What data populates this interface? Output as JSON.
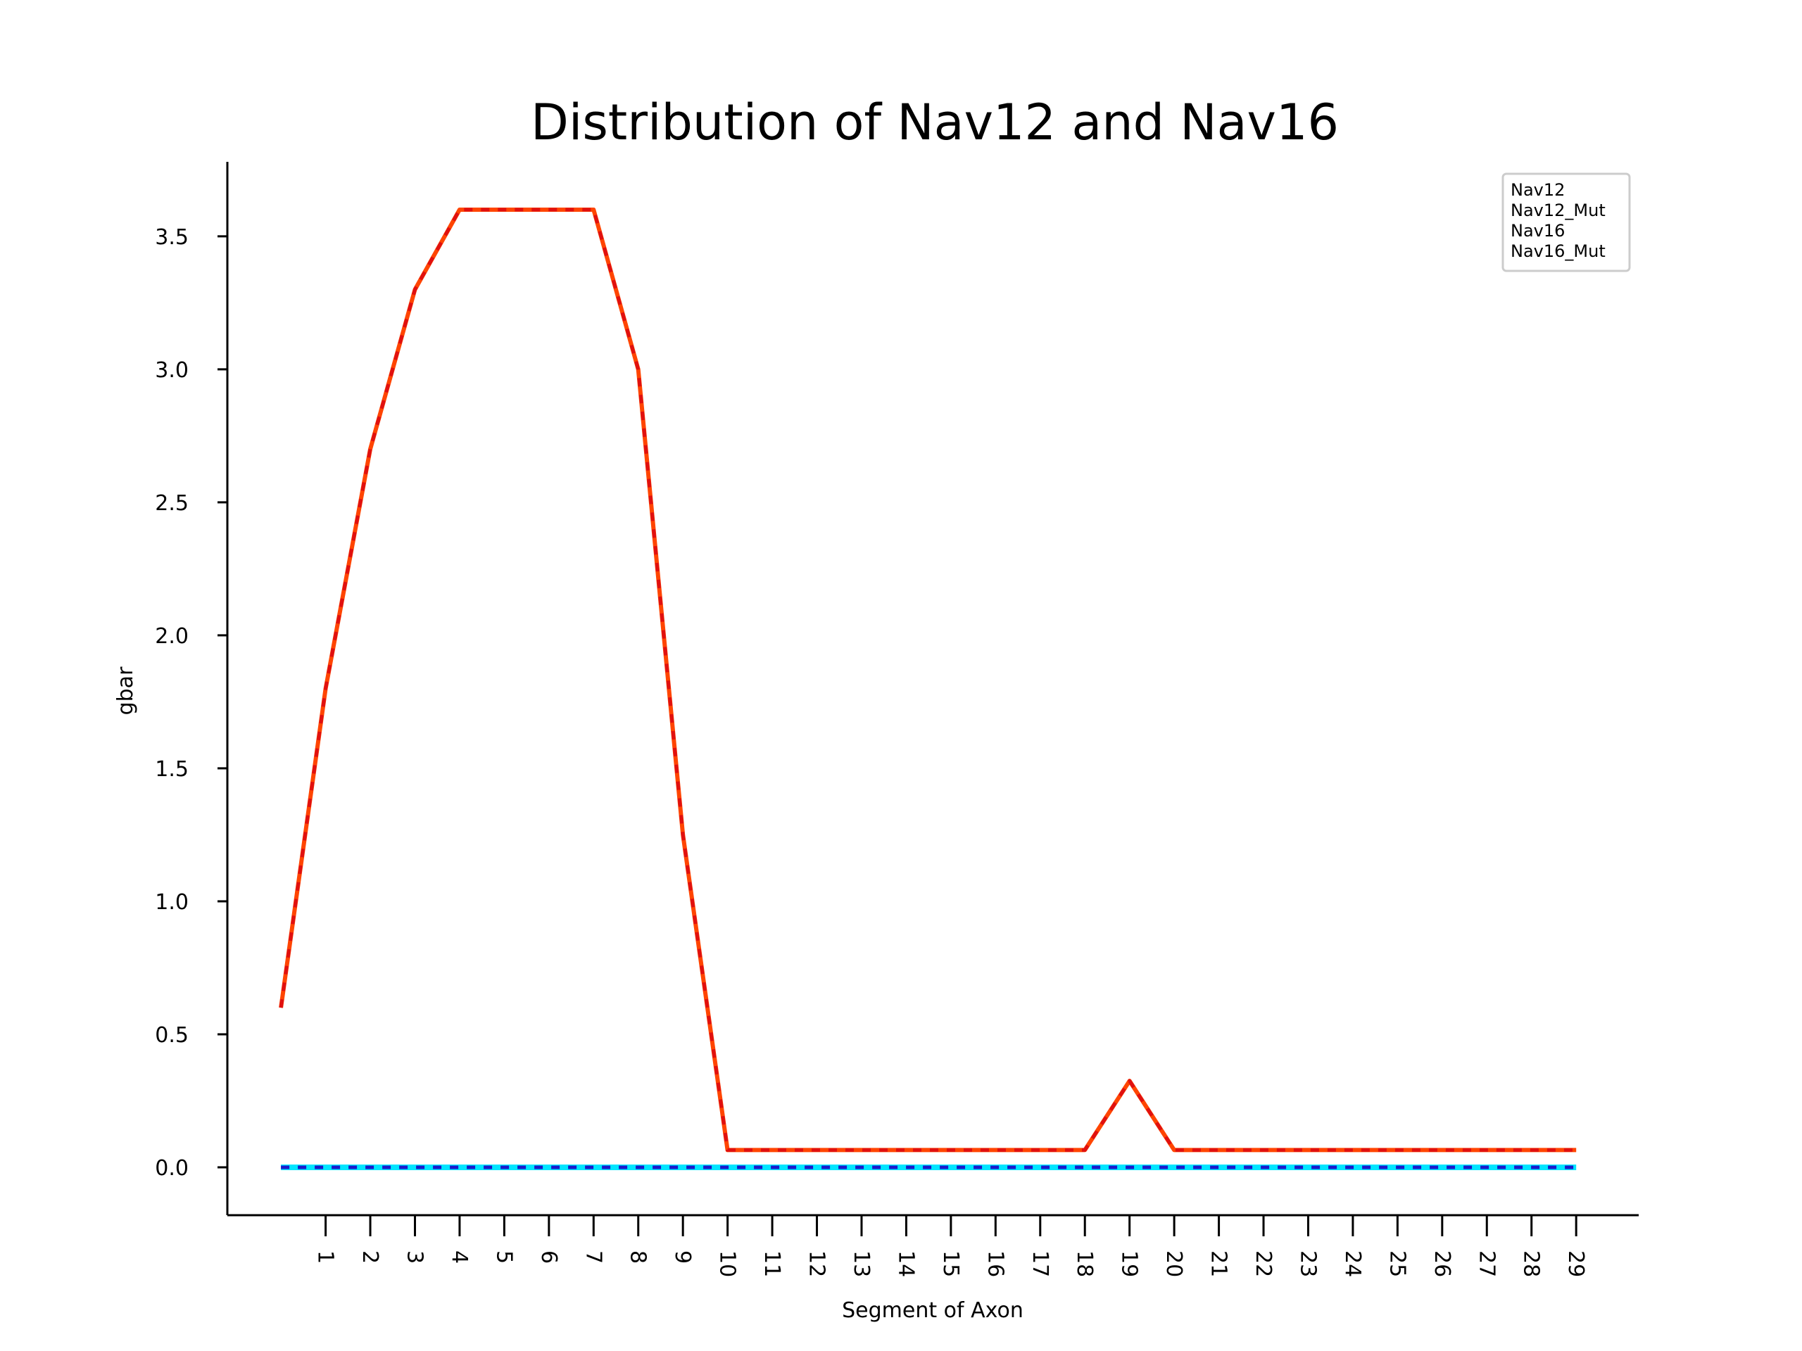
{
  "chart_data": {
    "type": "line",
    "title": "Distribution of Nav12 and Nav16",
    "xlabel": "Segment of Axon",
    "ylabel": "gbar",
    "x_tick_labels": [
      "1",
      "2",
      "3",
      "4",
      "5",
      "6",
      "7",
      "8",
      "9",
      "10",
      "11",
      "12",
      "13",
      "14",
      "15",
      "16",
      "17",
      "18",
      "19",
      "20",
      "21",
      "22",
      "23",
      "24",
      "25",
      "26",
      "27",
      "28",
      "29"
    ],
    "x": [
      0,
      1,
      2,
      3,
      4,
      5,
      6,
      7,
      8,
      9,
      10,
      11,
      12,
      13,
      14,
      15,
      16,
      17,
      18,
      19,
      20,
      21,
      22,
      23,
      24,
      25,
      26,
      27,
      28,
      29
    ],
    "xlim": [
      -1.2,
      30.4
    ],
    "ylim": [
      -0.18,
      3.78
    ],
    "y_ticks": [
      0.0,
      0.5,
      1.0,
      1.5,
      2.0,
      2.5,
      3.0,
      3.5
    ],
    "y_tick_labels": [
      "0.0",
      "0.5",
      "1.0",
      "1.5",
      "2.0",
      "2.5",
      "3.0",
      "3.5"
    ],
    "series": [
      {
        "name": "Nav12",
        "color": "#ff4500",
        "style": "solid",
        "values": [
          0.6,
          1.8,
          2.7,
          3.3,
          3.6,
          3.6,
          3.6,
          3.6,
          3.0,
          1.25,
          0.065,
          0.065,
          0.065,
          0.065,
          0.065,
          0.065,
          0.065,
          0.065,
          0.065,
          0.325,
          0.065,
          0.065,
          0.065,
          0.065,
          0.065,
          0.065,
          0.065,
          0.065,
          0.065,
          0.065
        ]
      },
      {
        "name": "Nav12_Mut",
        "color": "#e01010",
        "style": "dashed",
        "values": [
          0.6,
          1.8,
          2.7,
          3.3,
          3.6,
          3.6,
          3.6,
          3.6,
          3.0,
          1.25,
          0.065,
          0.065,
          0.065,
          0.065,
          0.065,
          0.065,
          0.065,
          0.065,
          0.065,
          0.325,
          0.065,
          0.065,
          0.065,
          0.065,
          0.065,
          0.065,
          0.065,
          0.065,
          0.065,
          0.065
        ]
      },
      {
        "name": "Nav16",
        "color": "#00e5ff",
        "style": "solid",
        "values": [
          0,
          0,
          0,
          0,
          0,
          0,
          0,
          0,
          0,
          0,
          0,
          0,
          0,
          0,
          0,
          0,
          0,
          0,
          0,
          0,
          0,
          0,
          0,
          0,
          0,
          0,
          0,
          0,
          0,
          0
        ]
      },
      {
        "name": "Nav16_Mut",
        "color": "#1a1acc",
        "style": "dashed",
        "values": [
          0,
          0,
          0,
          0,
          0,
          0,
          0,
          0,
          0,
          0,
          0,
          0,
          0,
          0,
          0,
          0,
          0,
          0,
          0,
          0,
          0,
          0,
          0,
          0,
          0,
          0,
          0,
          0,
          0,
          0
        ]
      }
    ],
    "legend": {
      "position": "top-right",
      "entries": [
        "Nav12",
        "Nav12_Mut",
        "Nav16",
        "Nav16_Mut"
      ]
    },
    "grid": false
  }
}
